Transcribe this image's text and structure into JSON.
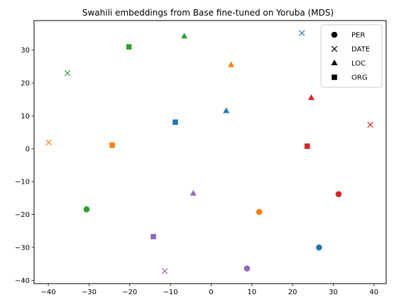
{
  "chart_data": {
    "type": "scatter",
    "title": "Swahili embeddings from Base fine-tuned on Yoruba (MDS)",
    "xlabel": "",
    "ylabel": "",
    "xlim": [
      -43.5,
      43
    ],
    "ylim": [
      -41,
      39
    ],
    "xticks": [
      -40,
      -30,
      -20,
      -10,
      0,
      10,
      20,
      30,
      40
    ],
    "yticks": [
      -40,
      -30,
      -20,
      -10,
      0,
      10,
      20,
      30
    ],
    "grid": false,
    "legend_position": "top-right",
    "legend": [
      {
        "label": "PER",
        "marker": "circle"
      },
      {
        "label": "DATE",
        "marker": "x"
      },
      {
        "label": "LOC",
        "marker": "triangle"
      },
      {
        "label": "ORG",
        "marker": "square"
      }
    ],
    "colors": {
      "blue": "#1f77b4",
      "orange": "#ff7f0e",
      "green": "#2ca02c",
      "red": "#d62728",
      "purple": "#9467bd"
    },
    "points": [
      {
        "x": 26.5,
        "y": -30.0,
        "marker": "circle",
        "color": "blue"
      },
      {
        "x": 22.3,
        "y": 35.2,
        "marker": "x",
        "color": "blue"
      },
      {
        "x": 3.7,
        "y": 11.5,
        "marker": "triangle",
        "color": "blue"
      },
      {
        "x": -8.8,
        "y": 8.1,
        "marker": "square",
        "color": "blue"
      },
      {
        "x": 11.8,
        "y": -19.2,
        "marker": "circle",
        "color": "orange"
      },
      {
        "x": -39.9,
        "y": 1.9,
        "marker": "x",
        "color": "orange"
      },
      {
        "x": 4.9,
        "y": 25.5,
        "marker": "triangle",
        "color": "orange"
      },
      {
        "x": -24.3,
        "y": 1.1,
        "marker": "square",
        "color": "orange"
      },
      {
        "x": -30.6,
        "y": -18.4,
        "marker": "circle",
        "color": "green"
      },
      {
        "x": -35.3,
        "y": 23.0,
        "marker": "x",
        "color": "green"
      },
      {
        "x": -6.6,
        "y": 34.2,
        "marker": "triangle",
        "color": "green"
      },
      {
        "x": -20.2,
        "y": 31.0,
        "marker": "square",
        "color": "green"
      },
      {
        "x": 31.3,
        "y": -13.8,
        "marker": "circle",
        "color": "red"
      },
      {
        "x": 39.1,
        "y": 7.3,
        "marker": "x",
        "color": "red"
      },
      {
        "x": 24.6,
        "y": 15.5,
        "marker": "triangle",
        "color": "red"
      },
      {
        "x": 23.6,
        "y": 0.8,
        "marker": "square",
        "color": "red"
      },
      {
        "x": 8.8,
        "y": -36.4,
        "marker": "circle",
        "color": "purple"
      },
      {
        "x": -11.4,
        "y": -37.2,
        "marker": "x",
        "color": "purple"
      },
      {
        "x": -4.4,
        "y": -13.6,
        "marker": "triangle",
        "color": "purple"
      },
      {
        "x": -14.2,
        "y": -26.7,
        "marker": "square",
        "color": "purple"
      }
    ]
  }
}
